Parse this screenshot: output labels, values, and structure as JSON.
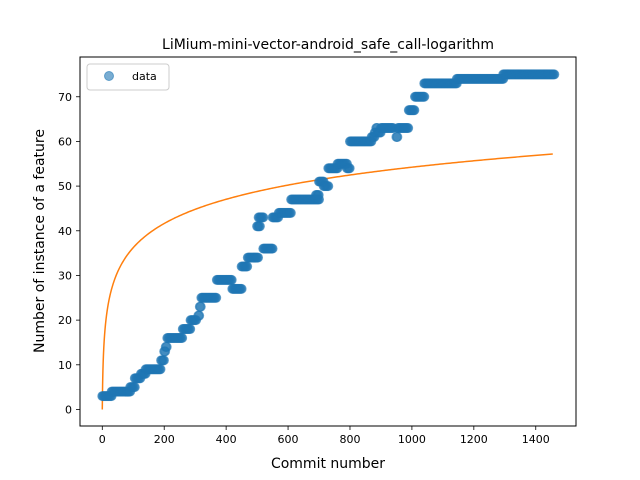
{
  "chart_data": {
    "type": "scatter",
    "title": "LiMium-mini-vector-android_safe_call-logarithm",
    "xlabel": "Commit number",
    "ylabel": "Number of instance of a feature",
    "xlim": [
      -72,
      1530
    ],
    "ylim": [
      -3.7,
      78.9
    ],
    "xticks": [
      0,
      200,
      400,
      600,
      800,
      1000,
      1200,
      1400
    ],
    "yticks": [
      0,
      10,
      20,
      30,
      40,
      50,
      60,
      70
    ],
    "xtick_labels": [
      "0",
      "200",
      "400",
      "600",
      "800",
      "1000",
      "1200",
      "1400"
    ],
    "ytick_labels": [
      "0",
      "10",
      "20",
      "30",
      "40",
      "50",
      "60",
      "70"
    ],
    "legend": {
      "position": "upper-left",
      "entries": [
        "data"
      ]
    },
    "grid": false,
    "series": [
      {
        "name": "data",
        "kind": "scatter",
        "color": "#1f77b4",
        "steps": [
          [
            0,
            30,
            3
          ],
          [
            30,
            90,
            4
          ],
          [
            90,
            105,
            5
          ],
          [
            105,
            125,
            7
          ],
          [
            125,
            140,
            8
          ],
          [
            140,
            190,
            9
          ],
          [
            190,
            200,
            11
          ],
          [
            200,
            205,
            13
          ],
          [
            205,
            210,
            14
          ],
          [
            210,
            260,
            16
          ],
          [
            260,
            285,
            18
          ],
          [
            285,
            305,
            20
          ],
          [
            310,
            315,
            21
          ],
          [
            315,
            320,
            23
          ],
          [
            320,
            370,
            25
          ],
          [
            370,
            420,
            29
          ],
          [
            420,
            450,
            27
          ],
          [
            450,
            470,
            32
          ],
          [
            470,
            505,
            34
          ],
          [
            500,
            510,
            41
          ],
          [
            505,
            520,
            43
          ],
          [
            520,
            550,
            36
          ],
          [
            550,
            570,
            43
          ],
          [
            570,
            610,
            44
          ],
          [
            610,
            700,
            47
          ],
          [
            690,
            700,
            48
          ],
          [
            700,
            715,
            51
          ],
          [
            715,
            730,
            50
          ],
          [
            730,
            760,
            54
          ],
          [
            760,
            790,
            55
          ],
          [
            790,
            800,
            54
          ],
          [
            800,
            870,
            60
          ],
          [
            870,
            880,
            61
          ],
          [
            880,
            885,
            62
          ],
          [
            885,
            890,
            63
          ],
          [
            890,
            900,
            62
          ],
          [
            900,
            940,
            63
          ],
          [
            950,
            955,
            61
          ],
          [
            955,
            990,
            63
          ],
          [
            990,
            1010,
            67
          ],
          [
            1010,
            1040,
            70
          ],
          [
            1040,
            1145,
            73
          ],
          [
            1145,
            1295,
            74
          ],
          [
            1295,
            1460,
            75
          ]
        ]
      },
      {
        "name": "",
        "kind": "line",
        "color": "#ff7f0e",
        "formula": "y = 7.85 * ln(x + 1)",
        "x_range": [
          0,
          1455
        ]
      }
    ]
  }
}
